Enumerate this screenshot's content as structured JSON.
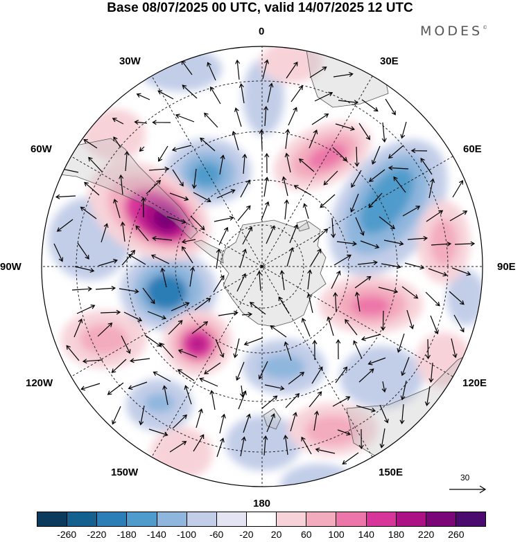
{
  "title": "Base 08/07/2025 00 UTC, valid 14/07/2025 12 UTC",
  "brand": "MODES",
  "brand_mark": "©",
  "longitude_labels": {
    "lon_0": "0",
    "lon_30e": "30E",
    "lon_60e": "60E",
    "lon_90e": "90E",
    "lon_120e": "120E",
    "lon_150e": "150E",
    "lon_180": "180",
    "lon_150w": "150W",
    "lon_120w": "120W",
    "lon_90w": "90W",
    "lon_60w": "60W",
    "lon_30w": "30W"
  },
  "vector_reference": {
    "value": "30"
  },
  "colorbar": {
    "tick_labels": [
      "-260",
      "-220",
      "-180",
      "-140",
      "-100",
      "-60",
      "-20",
      "20",
      "60",
      "100",
      "140",
      "180",
      "220",
      "260"
    ],
    "colors": [
      "#0b3a5c",
      "#14608f",
      "#2b7eb6",
      "#4f9bcb",
      "#8fb6dd",
      "#c2cde8",
      "#e4e4f2",
      "#ffffff",
      "#f7d3d9",
      "#f3abbe",
      "#ec76a9",
      "#d8359a",
      "#ad1186",
      "#7a0677",
      "#4a0a6e"
    ]
  },
  "anomaly_colors": {
    "strong_negative": "#2b7eb6",
    "negative": "#8fb6dd",
    "weak_negative": "#c2cde8",
    "weak_positive": "#f7d3d9",
    "positive": "#f3abbe",
    "strong_positive": "#d8359a",
    "extreme_positive": "#7a0677",
    "land_fill": "#ededed"
  }
}
